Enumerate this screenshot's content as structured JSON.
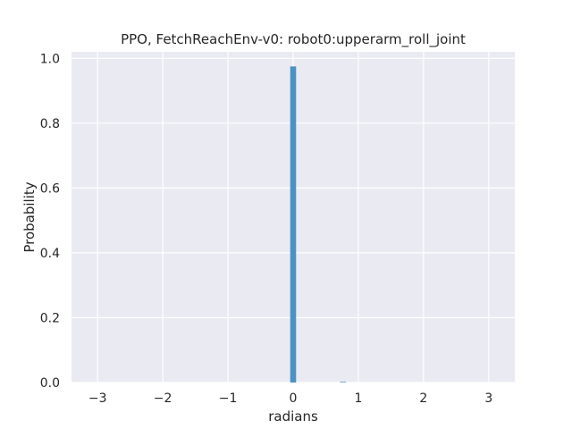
{
  "chart_data": {
    "type": "bar",
    "title": "PPO, FetchReachEnv-v0: robot0:upperarm_roll_joint",
    "xlabel": "radians",
    "ylabel": "Probability",
    "xlim": [
      -3.4,
      3.4
    ],
    "ylim": [
      0.0,
      1.02
    ],
    "xticks": [
      "−3",
      "−2",
      "−1",
      "0",
      "1",
      "2",
      "3"
    ],
    "xtick_values": [
      -3,
      -2,
      -1,
      0,
      1,
      2,
      3
    ],
    "yticks": [
      "0.0",
      "0.2",
      "0.4",
      "0.6",
      "0.8",
      "1.0"
    ],
    "ytick_values": [
      0.0,
      0.2,
      0.4,
      0.6,
      0.8,
      1.0
    ],
    "grid": true,
    "bar_color": "#4c92c3",
    "background": "#eaeaf2",
    "bins": [
      {
        "x0": -0.045,
        "x1": 0.045,
        "value": 0.975
      },
      {
        "x0": 0.72,
        "x1": 0.81,
        "value": 0.002
      }
    ]
  }
}
